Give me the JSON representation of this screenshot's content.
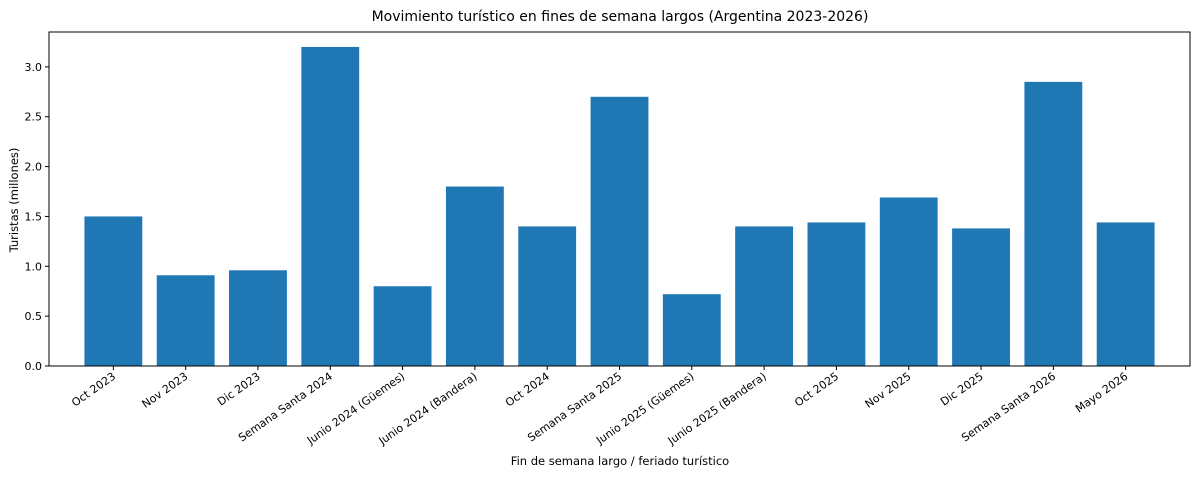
{
  "chart_data": {
    "type": "bar",
    "title": "Movimiento turístico en fines de semana largos (Argentina 2023-2026)",
    "xlabel": "Fin de semana largo / feriado turístico",
    "ylabel": "Turistas (millones)",
    "categories": [
      "Oct 2023",
      "Nov 2023",
      "Dic 2023",
      "Semana Santa 2024",
      "Junio 2024 (Güemes)",
      "Junio 2024 (Bandera)",
      "Oct 2024",
      "Semana Santa 2025",
      "Junio 2025 (Güemes)",
      "Junio 2025 (Bandera)",
      "Oct 2025",
      "Nov 2025",
      "Dic 2025",
      "Semana Santa 2026",
      "Mayo 2026"
    ],
    "values": [
      1.5,
      0.91,
      0.96,
      3.2,
      0.8,
      1.8,
      1.4,
      2.7,
      0.72,
      1.4,
      1.44,
      1.69,
      1.38,
      2.85,
      1.44
    ],
    "ylim": [
      0,
      3.35
    ],
    "yticks": [
      "0.0",
      "0.5",
      "1.0",
      "1.5",
      "2.0",
      "2.5",
      "3.0"
    ],
    "bar_color": "#1f77b4",
    "grid": false,
    "legend": "none"
  }
}
